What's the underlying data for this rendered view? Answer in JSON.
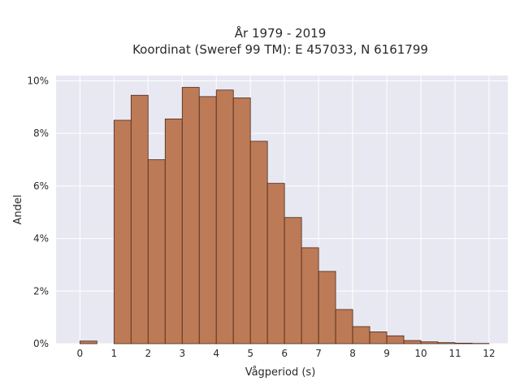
{
  "chart_data": {
    "type": "bar",
    "title": "År 1979 - 2019",
    "subtitle": "Koordinat (Sweref 99 TM): E 457033, N 6161799",
    "xlabel": "Vågperiod (s)",
    "ylabel": "Andel",
    "bin_width": 0.5,
    "x_bins_start": [
      0,
      0.5,
      1,
      1.5,
      2,
      2.5,
      3,
      3.5,
      4,
      4.5,
      5,
      5.5,
      6,
      6.5,
      7,
      7.5,
      8,
      8.5,
      9,
      9.5,
      10,
      10.5,
      11,
      11.5
    ],
    "values": [
      0.1,
      0.0,
      8.5,
      9.45,
      7.0,
      8.55,
      9.75,
      9.4,
      9.65,
      9.35,
      7.7,
      6.1,
      4.8,
      3.65,
      2.75,
      1.3,
      0.65,
      0.45,
      0.3,
      0.12,
      0.07,
      0.04,
      0.02,
      0.01
    ],
    "xlim": [
      -0.7,
      12.55
    ],
    "ylim": [
      0,
      10.2
    ],
    "x_ticks": [
      0,
      1,
      2,
      3,
      4,
      5,
      6,
      7,
      8,
      9,
      10,
      11,
      12
    ],
    "x_tick_labels": [
      "0",
      "1",
      "2",
      "3",
      "4",
      "5",
      "6",
      "7",
      "8",
      "9",
      "10",
      "11",
      "12"
    ],
    "y_ticks": [
      0,
      2,
      4,
      6,
      8,
      10
    ],
    "y_tick_labels": [
      "0%",
      "2%",
      "4%",
      "6%",
      "8%",
      "10%"
    ],
    "grid": true,
    "colors": {
      "bar_fill": "#bd7a56",
      "bar_stroke": "#4a2a1a",
      "plot_bg": "#e8e8f2",
      "grid": "#ffffff"
    }
  }
}
